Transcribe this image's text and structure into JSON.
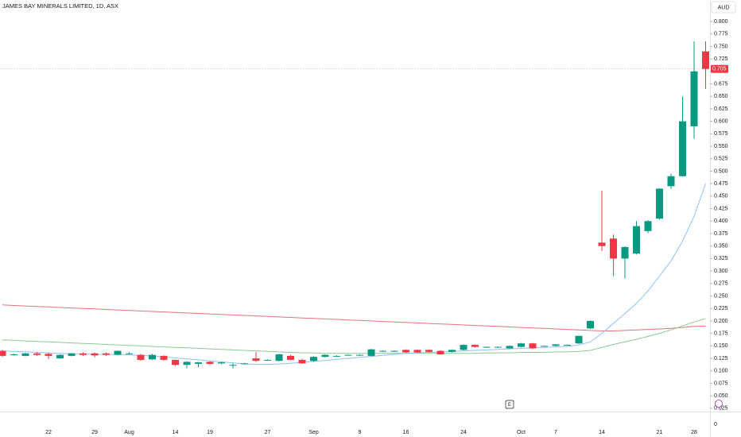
{
  "chart_data": {
    "type": "candlestick",
    "title": "JAMES BAY MINERALS LIMITED, 1D, ASX",
    "currency_button": "AUD",
    "event_marker": "E",
    "categories": [
      null,
      null,
      null,
      null,
      "22",
      null,
      null,
      null,
      "29",
      null,
      null,
      "Aug",
      null,
      null,
      null,
      "14",
      null,
      null,
      "19",
      null,
      null,
      null,
      null,
      "27",
      null,
      null,
      null,
      "Sep",
      null,
      null,
      null,
      "9",
      null,
      null,
      null,
      "16",
      null,
      null,
      null,
      null,
      "24",
      null,
      null,
      null,
      null,
      "Oct",
      null,
      null,
      "7",
      null,
      null,
      null,
      "14",
      null,
      null,
      null,
      null,
      "21",
      null,
      null,
      "28",
      null
    ],
    "open": [
      0.14,
      0.133,
      0.13,
      0.135,
      0.134,
      0.125,
      0.13,
      0.135,
      0.135,
      0.135,
      0.132,
      0.135,
      0.132,
      0.123,
      0.13,
      0.122,
      0.112,
      0.114,
      0.118,
      0.115,
      0.112,
      0.115,
      0.125,
      0.122,
      0.12,
      0.13,
      0.122,
      0.12,
      0.128,
      0.13,
      0.132,
      0.132,
      0.13,
      0.14,
      0.14,
      0.142,
      0.142,
      0.142,
      0.14,
      0.138,
      0.142,
      0.152,
      0.148,
      0.148,
      0.145,
      0.148,
      0.155,
      0.15,
      0.15,
      0.152,
      0.155,
      0.185,
      0.357,
      0.365,
      0.325,
      0.335,
      0.38,
      0.405,
      0.47,
      0.49,
      0.59,
      0.74
    ],
    "high": [
      0.142,
      0.135,
      0.136,
      0.137,
      0.136,
      0.133,
      0.136,
      0.137,
      0.137,
      0.137,
      0.141,
      0.137,
      0.134,
      0.134,
      0.131,
      0.123,
      0.119,
      0.118,
      0.119,
      0.118,
      0.115,
      0.116,
      0.138,
      0.123,
      0.134,
      0.132,
      0.124,
      0.129,
      0.133,
      0.131,
      0.133,
      0.133,
      0.144,
      0.141,
      0.141,
      0.143,
      0.143,
      0.143,
      0.141,
      0.143,
      0.153,
      0.153,
      0.149,
      0.149,
      0.151,
      0.156,
      0.156,
      0.151,
      0.154,
      0.153,
      0.171,
      0.201,
      0.461,
      0.373,
      0.35,
      0.4,
      0.402,
      0.466,
      0.495,
      0.65,
      0.76,
      0.76
    ],
    "low": [
      0.128,
      0.131,
      0.129,
      0.13,
      0.123,
      0.124,
      0.129,
      0.13,
      0.127,
      0.13,
      0.131,
      0.133,
      0.12,
      0.122,
      0.12,
      0.11,
      0.105,
      0.107,
      0.112,
      0.113,
      0.105,
      0.113,
      0.118,
      0.121,
      0.119,
      0.121,
      0.114,
      0.118,
      0.127,
      0.129,
      0.131,
      0.131,
      0.129,
      0.139,
      0.139,
      0.136,
      0.136,
      0.137,
      0.132,
      0.137,
      0.141,
      0.147,
      0.147,
      0.147,
      0.144,
      0.147,
      0.144,
      0.149,
      0.149,
      0.151,
      0.154,
      0.184,
      0.34,
      0.29,
      0.285,
      0.333,
      0.376,
      0.403,
      0.465,
      0.489,
      0.565,
      0.665
    ],
    "close": [
      0.13,
      0.133,
      0.135,
      0.132,
      0.13,
      0.132,
      0.135,
      0.132,
      0.131,
      0.132,
      0.14,
      0.135,
      0.122,
      0.132,
      0.122,
      0.112,
      0.118,
      0.117,
      0.114,
      0.117,
      0.112,
      0.115,
      0.12,
      0.122,
      0.133,
      0.122,
      0.115,
      0.128,
      0.132,
      0.13,
      0.132,
      0.132,
      0.143,
      0.14,
      0.14,
      0.137,
      0.137,
      0.138,
      0.133,
      0.142,
      0.152,
      0.148,
      0.148,
      0.148,
      0.15,
      0.155,
      0.145,
      0.15,
      0.153,
      0.152,
      0.17,
      0.2,
      0.35,
      0.325,
      0.348,
      0.39,
      0.4,
      0.465,
      0.49,
      0.6,
      0.7,
      0.705
    ],
    "up_color": "#089981",
    "down_color": "#f23645",
    "series": [
      {
        "color": "#e57373",
        "values": [
          0.232,
          0.231,
          0.23,
          0.229,
          0.228,
          0.227,
          0.226,
          0.225,
          0.224,
          0.223,
          0.222,
          0.221,
          0.22,
          0.219,
          0.218,
          0.217,
          0.216,
          0.215,
          0.214,
          0.213,
          0.212,
          0.211,
          0.21,
          0.209,
          0.208,
          0.207,
          0.206,
          0.205,
          0.204,
          0.203,
          0.202,
          0.201,
          0.2,
          0.199,
          0.198,
          0.197,
          0.196,
          0.195,
          0.194,
          0.193,
          0.192,
          0.191,
          0.19,
          0.189,
          0.188,
          0.187,
          0.186,
          0.185,
          0.184,
          0.183,
          0.182,
          0.181,
          0.18,
          0.18,
          0.181,
          0.182,
          0.183,
          0.184,
          0.185,
          0.187,
          0.189,
          0.19
        ]
      },
      {
        "color": "#8cc98f",
        "values": [
          0.162,
          0.161,
          0.16,
          0.159,
          0.158,
          0.157,
          0.156,
          0.155,
          0.154,
          0.153,
          0.152,
          0.151,
          0.15,
          0.149,
          0.148,
          0.147,
          0.146,
          0.145,
          0.144,
          0.143,
          0.142,
          0.141,
          0.14,
          0.139,
          0.138,
          0.137,
          0.136,
          0.136,
          0.135,
          0.135,
          0.135,
          0.135,
          0.135,
          0.135,
          0.135,
          0.135,
          0.135,
          0.135,
          0.135,
          0.135,
          0.135,
          0.135,
          0.136,
          0.136,
          0.136,
          0.137,
          0.137,
          0.137,
          0.138,
          0.138,
          0.139,
          0.141,
          0.147,
          0.153,
          0.158,
          0.163,
          0.169,
          0.175,
          0.182,
          0.19,
          0.198,
          0.205
        ]
      },
      {
        "color": "#90bff9",
        "values": [
          0.14,
          0.139,
          0.138,
          0.137,
          0.136,
          0.135,
          0.134,
          0.134,
          0.133,
          0.133,
          0.133,
          0.132,
          0.131,
          0.13,
          0.128,
          0.126,
          0.124,
          0.122,
          0.12,
          0.118,
          0.116,
          0.114,
          0.113,
          0.113,
          0.114,
          0.115,
          0.117,
          0.119,
          0.121,
          0.123,
          0.125,
          0.127,
          0.129,
          0.131,
          0.133,
          0.135,
          0.136,
          0.137,
          0.138,
          0.139,
          0.14,
          0.141,
          0.142,
          0.143,
          0.144,
          0.145,
          0.146,
          0.147,
          0.148,
          0.149,
          0.152,
          0.158,
          0.175,
          0.195,
          0.215,
          0.235,
          0.26,
          0.29,
          0.32,
          0.36,
          0.41,
          0.475
        ]
      }
    ],
    "price_line": 0.705,
    "ylim": [
      0.02,
      0.843
    ],
    "yticks": [
      0.025,
      {
        "value": 0.05,
        "label": "0.050"
      },
      0.075,
      {
        "value": 0.1,
        "label": "0.100"
      },
      0.125,
      {
        "value": 0.15,
        "label": "0.150"
      },
      0.175,
      {
        "value": 0.2,
        "label": "0.200"
      },
      0.225,
      {
        "value": 0.25,
        "label": "0.250"
      },
      0.275,
      {
        "value": 0.3,
        "label": "0.300"
      },
      0.325,
      {
        "value": 0.35,
        "label": "0.350"
      },
      0.375,
      {
        "value": 0.4,
        "label": "0.400"
      },
      0.425,
      {
        "value": 0.45,
        "label": "0.450"
      },
      0.475,
      {
        "value": 0.5,
        "label": "0.500"
      },
      0.525,
      {
        "value": 0.55,
        "label": "0.550"
      },
      0.575,
      {
        "value": 0.6,
        "label": "0.600"
      },
      0.625,
      {
        "value": 0.65,
        "label": "0.650"
      },
      0.675,
      {
        "value": 0.7,
        "label": "0.700"
      },
      0.725,
      {
        "value": 0.75,
        "label": "0.750"
      },
      0.775,
      {
        "value": 0.8,
        "label": "0.800"
      }
    ],
    "lower_pane_yticks": [
      0
    ],
    "grid": false
  }
}
